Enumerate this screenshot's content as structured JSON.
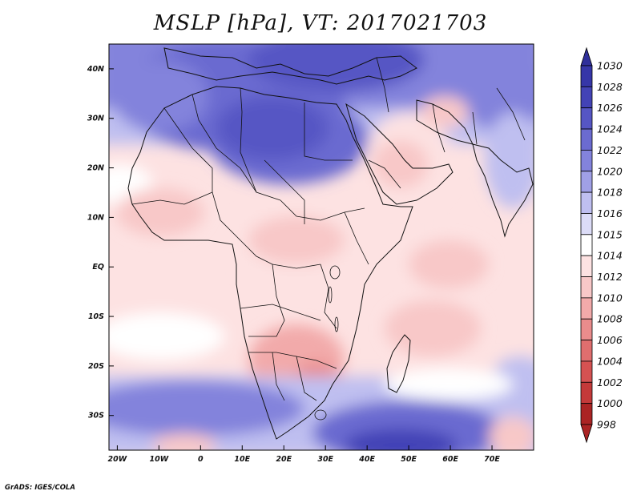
{
  "title": "MSLP [hPa], VT: 2017021703",
  "credit": "GrADS: IGES/COLA",
  "map": {
    "lon_range": [
      -22,
      80
    ],
    "lat_range": [
      -37,
      45
    ],
    "lon_ticks": [
      {
        "value": -20,
        "label": "20W"
      },
      {
        "value": -10,
        "label": "10W"
      },
      {
        "value": 0,
        "label": "0"
      },
      {
        "value": 10,
        "label": "10E"
      },
      {
        "value": 20,
        "label": "20E"
      },
      {
        "value": 30,
        "label": "30E"
      },
      {
        "value": 40,
        "label": "40E"
      },
      {
        "value": 50,
        "label": "50E"
      },
      {
        "value": 60,
        "label": "60E"
      },
      {
        "value": 70,
        "label": "70E"
      }
    ],
    "lat_ticks": [
      {
        "value": 40,
        "label": "40N"
      },
      {
        "value": 30,
        "label": "30N"
      },
      {
        "value": 20,
        "label": "20N"
      },
      {
        "value": 10,
        "label": "10N"
      },
      {
        "value": 0,
        "label": "EQ"
      },
      {
        "value": -10,
        "label": "10S"
      },
      {
        "value": -20,
        "label": "20S"
      },
      {
        "value": -30,
        "label": "30S"
      }
    ]
  },
  "colorbar": {
    "levels": [
      {
        "label": "1030",
        "color": "#2f2f9a"
      },
      {
        "label": "1028",
        "color": "#3636a8"
      },
      {
        "label": "1026",
        "color": "#4343b6"
      },
      {
        "label": "1024",
        "color": "#5656c4"
      },
      {
        "label": "1022",
        "color": "#6b6bd0"
      },
      {
        "label": "1020",
        "color": "#8383dc"
      },
      {
        "label": "1018",
        "color": "#a0a0e6"
      },
      {
        "label": "1016",
        "color": "#bfbff0"
      },
      {
        "label": "1015",
        "color": "#dcdcf7"
      },
      {
        "label": "1014",
        "color": "#ffffff"
      },
      {
        "label": "1012",
        "color": "#fde2e2"
      },
      {
        "label": "1010",
        "color": "#f8c8c8"
      },
      {
        "label": "1008",
        "color": "#f2aaaa"
      },
      {
        "label": "1006",
        "color": "#ea8c8c"
      },
      {
        "label": "1004",
        "color": "#e06e6e"
      },
      {
        "label": "1002",
        "color": "#d55252"
      },
      {
        "label": "1000",
        "color": "#c43a3a"
      },
      {
        "label": "998",
        "color": "#ab2424"
      }
    ]
  }
}
